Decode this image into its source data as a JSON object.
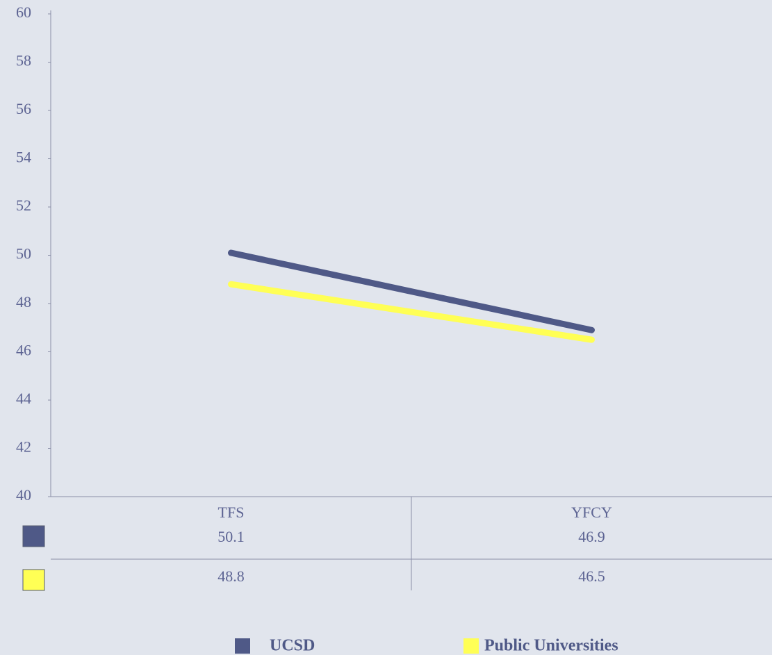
{
  "chart_data": {
    "type": "line",
    "categories": [
      "TFS",
      "YFCY"
    ],
    "series": [
      {
        "name": "UCSD",
        "color": "#4f5987",
        "values": [
          50.1,
          46.9
        ]
      },
      {
        "name": "Public Universities",
        "color": "#ffff55",
        "values": [
          48.8,
          46.5
        ]
      }
    ],
    "ylim": [
      40,
      60
    ],
    "yticks": [
      40,
      42,
      44,
      46,
      48,
      50,
      52,
      54,
      56,
      58,
      60
    ],
    "legend": "bottom",
    "data_table": true
  }
}
